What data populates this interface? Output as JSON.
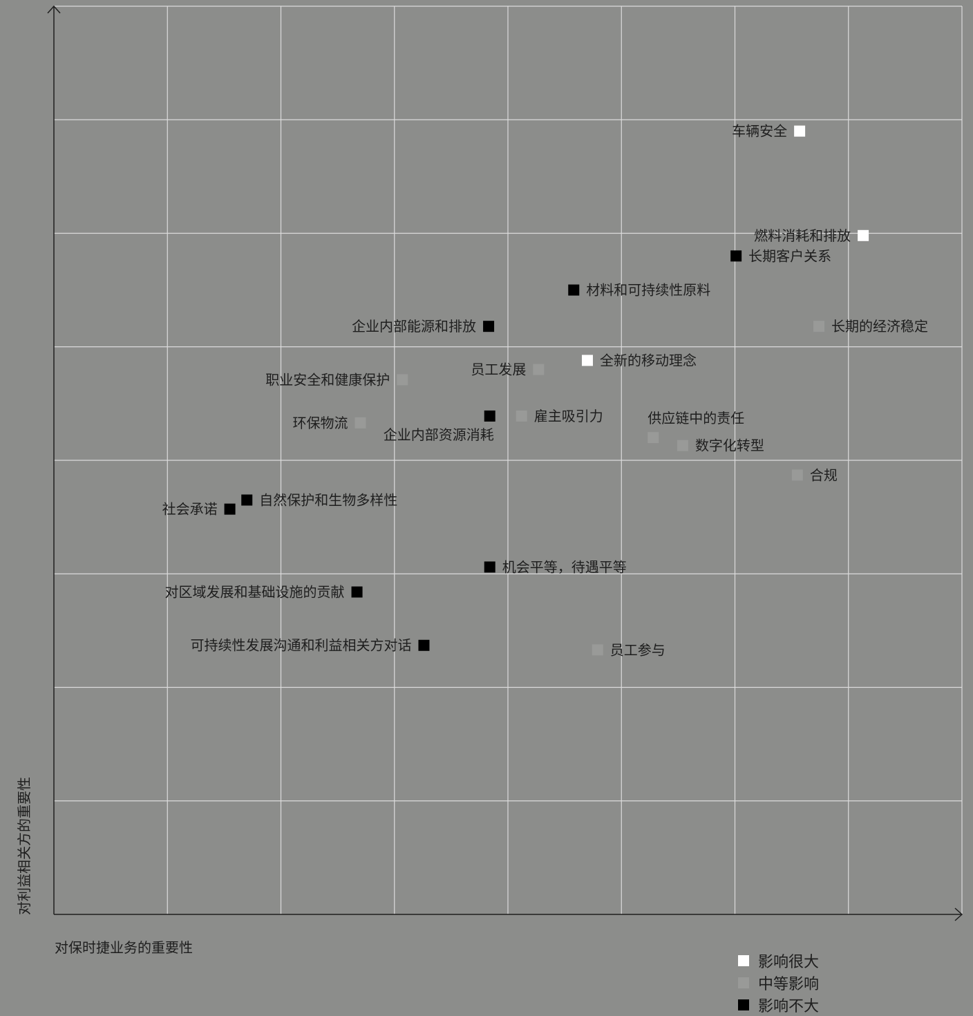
{
  "chart_data": {
    "type": "scatter",
    "title": "",
    "xlabel": "对保时捷业务的重要性",
    "ylabel": "对利益相关方的重要性",
    "xlim": [
      0,
      8
    ],
    "ylim": [
      0,
      8
    ],
    "grid": true,
    "legend_position": "bottom-right",
    "colors": {
      "high": "#ffffff",
      "medium": "#999a98",
      "low": "#000000",
      "grid": "#dcdcdc",
      "axis": "#1e1e1e",
      "background": "#8c8d8b"
    },
    "legend": [
      {
        "key": "high",
        "label": "影响很大"
      },
      {
        "key": "medium",
        "label": "中等影响"
      },
      {
        "key": "low",
        "label": "影响不大"
      }
    ],
    "points": [
      {
        "label": "车辆安全",
        "x": 6.57,
        "y": 6.9,
        "impact": "high",
        "label_side": "left"
      },
      {
        "label": "燃料消耗和排放",
        "x": 7.13,
        "y": 5.98,
        "impact": "high",
        "label_side": "left"
      },
      {
        "label": "长期客户关系",
        "x": 6.01,
        "y": 5.8,
        "impact": "low",
        "label_side": "right"
      },
      {
        "label": "材料和可持续性原料",
        "x": 4.58,
        "y": 5.5,
        "impact": "low",
        "label_side": "right"
      },
      {
        "label": "企业内部能源和排放",
        "x": 3.83,
        "y": 5.18,
        "impact": "low",
        "label_side": "left"
      },
      {
        "label": "长期的经济稳定",
        "x": 6.74,
        "y": 5.18,
        "impact": "medium",
        "label_side": "right"
      },
      {
        "label": "全新的移动理念",
        "x": 4.7,
        "y": 4.88,
        "impact": "high",
        "label_side": "right"
      },
      {
        "label": "员工发展",
        "x": 4.27,
        "y": 4.8,
        "impact": "medium",
        "label_side": "left"
      },
      {
        "label": "职业安全和健康保护",
        "x": 3.07,
        "y": 4.71,
        "impact": "medium",
        "label_side": "left"
      },
      {
        "label": "企业内部资源消耗",
        "x": 3.84,
        "y": 4.39,
        "impact": "low",
        "label_side": "below-left"
      },
      {
        "label": "雇主吸引力",
        "x": 4.12,
        "y": 4.39,
        "impact": "medium",
        "label_side": "right"
      },
      {
        "label": "环保物流",
        "x": 2.7,
        "y": 4.33,
        "impact": "medium",
        "label_side": "left"
      },
      {
        "label": "供应链中的责任",
        "x": 5.28,
        "y": 4.2,
        "impact": "medium",
        "label_side": "above-right"
      },
      {
        "label": "数字化转型",
        "x": 5.54,
        "y": 4.13,
        "impact": "medium",
        "label_side": "right"
      },
      {
        "label": "合规",
        "x": 6.55,
        "y": 3.87,
        "impact": "medium",
        "label_side": "right"
      },
      {
        "label": "自然保护和生物多样性",
        "x": 1.7,
        "y": 3.65,
        "impact": "low",
        "label_side": "right"
      },
      {
        "label": "社会承诺",
        "x": 1.55,
        "y": 3.57,
        "impact": "low",
        "label_side": "left"
      },
      {
        "label": "机会平等，待遇平等",
        "x": 3.84,
        "y": 3.06,
        "impact": "low",
        "label_side": "right"
      },
      {
        "label": "对区域发展和基础设施的贡献",
        "x": 2.67,
        "y": 2.84,
        "impact": "low",
        "label_side": "left"
      },
      {
        "label": "可持续性发展沟通和利益相关方对话",
        "x": 3.26,
        "y": 2.37,
        "impact": "low",
        "label_side": "left"
      },
      {
        "label": "员工参与",
        "x": 4.79,
        "y": 2.33,
        "impact": "medium",
        "label_side": "right"
      }
    ]
  }
}
